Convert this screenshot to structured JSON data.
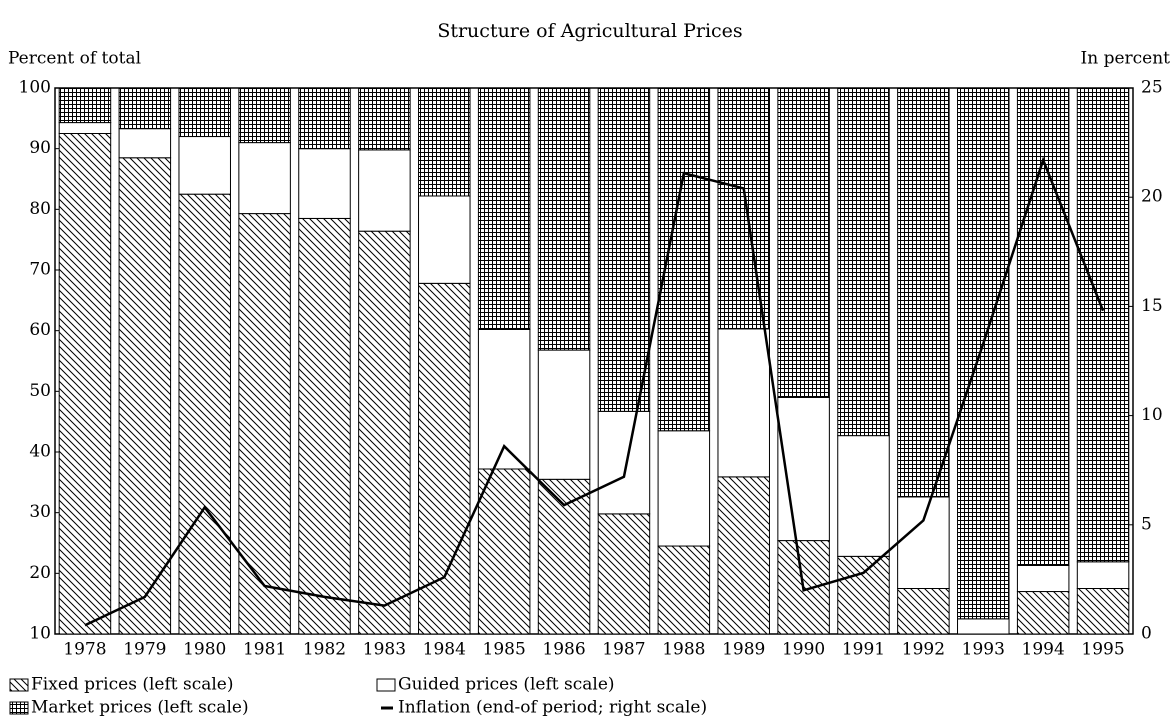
{
  "chart_data": {
    "type": "bar",
    "stacked": true,
    "title": "Structure of Agricultural Prices",
    "ylabel": "Percent of total",
    "y2label": "In percent",
    "categories": [
      "1978",
      "1979",
      "1980",
      "1981",
      "1982",
      "1983",
      "1984",
      "1985",
      "1986",
      "1987",
      "1988",
      "1989",
      "1990",
      "1991",
      "1992",
      "1993",
      "1994",
      "1995"
    ],
    "series": [
      {
        "name": "Fixed prices (left scale)",
        "type": "bar",
        "pattern": "diagonal",
        "color": "#000000",
        "values": [
          92.5,
          88.5,
          82.5,
          79.3,
          78.5,
          76.4,
          67.8,
          37.2,
          35.5,
          29.8,
          24.5,
          35.9,
          25.4,
          22.8,
          17.5,
          10,
          17,
          17.5
        ]
      },
      {
        "name": "Guided prices (left scale)",
        "type": "bar",
        "pattern": "none",
        "color": "#000000",
        "values": [
          1.8,
          4.8,
          9.5,
          11.7,
          11.5,
          13.4,
          14.4,
          23,
          21.3,
          16.9,
          19,
          24.4,
          23.6,
          19.9,
          15.1,
          2.5,
          4.3,
          4.4
        ]
      },
      {
        "name": "Market prices (left scale)",
        "type": "bar",
        "pattern": "grid",
        "color": "#000000",
        "values": [
          5.7,
          6.7,
          8,
          9,
          10,
          10.2,
          17.8,
          39.8,
          43.2,
          53.3,
          56.5,
          39.7,
          51,
          57.3,
          67.4,
          87.5,
          78.7,
          78.1
        ]
      },
      {
        "name": "Inflation (end-of period; right scale)",
        "type": "line",
        "axis": "y2",
        "color": "#000000",
        "values": [
          0.4,
          1.7,
          5.8,
          2.2,
          1.7,
          1.3,
          2.6,
          8.6,
          5.9,
          7.2,
          21.1,
          20.4,
          2.0,
          2.8,
          5.2,
          13.3,
          21.7,
          14.8
        ]
      }
    ],
    "ylim": [
      10,
      100
    ],
    "yticks": [
      10,
      20,
      30,
      40,
      50,
      60,
      70,
      80,
      90,
      100
    ],
    "y2lim": [
      0,
      25
    ],
    "y2ticks": [
      0,
      5,
      10,
      15,
      20,
      25
    ],
    "grid": false,
    "legend": "bottom"
  }
}
